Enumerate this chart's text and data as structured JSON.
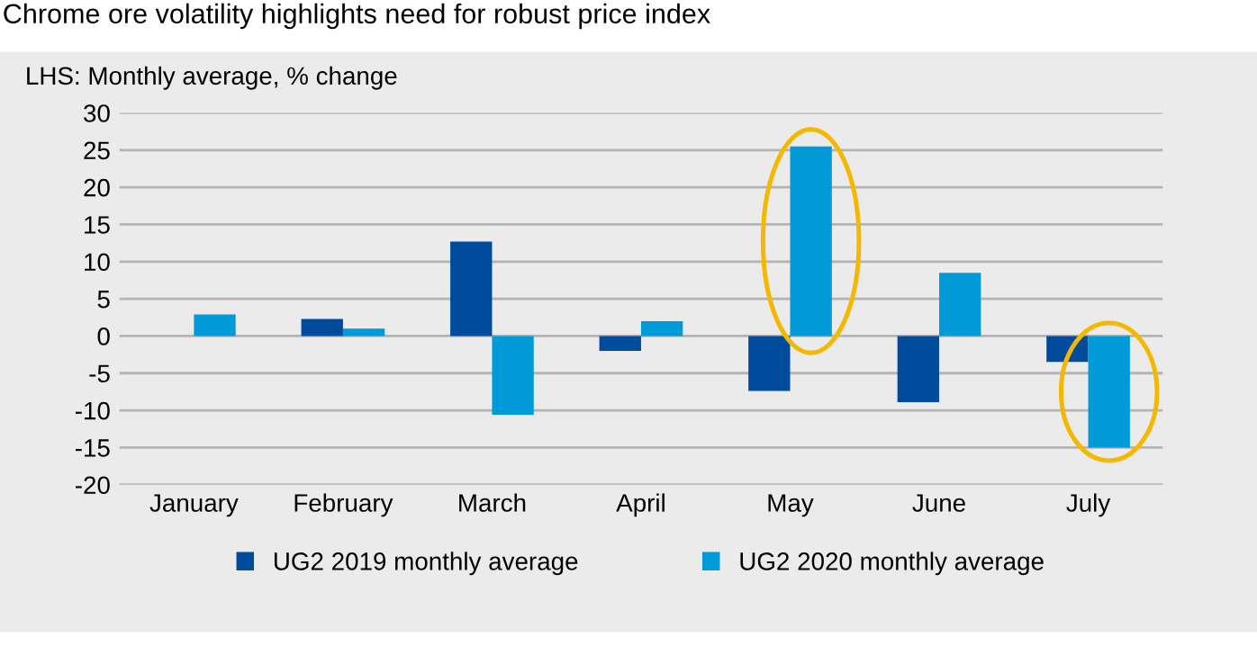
{
  "chart_data": {
    "type": "bar",
    "title": "Chrome ore volatility highlights need for robust price index",
    "ylabel": "LHS: Monthly average, % change",
    "categories": [
      "January",
      "February",
      "March",
      "April",
      "May",
      "June",
      "July"
    ],
    "series": [
      {
        "name": "UG2 2019 monthly average",
        "color": "#004b9b",
        "values": [
          null,
          2.3,
          12.7,
          -2.0,
          -7.4,
          -8.9,
          -3.5
        ]
      },
      {
        "name": "UG2 2020 monthly average",
        "color": "#009ad9",
        "values": [
          2.9,
          1.0,
          -10.6,
          2.0,
          25.5,
          8.5,
          -15.0
        ]
      }
    ],
    "ylim": [
      -20,
      30
    ],
    "yticks": [
      -20,
      -15,
      -10,
      -5,
      0,
      5,
      10,
      15,
      20,
      25,
      30
    ],
    "grid": "y",
    "legend": "bottom"
  }
}
